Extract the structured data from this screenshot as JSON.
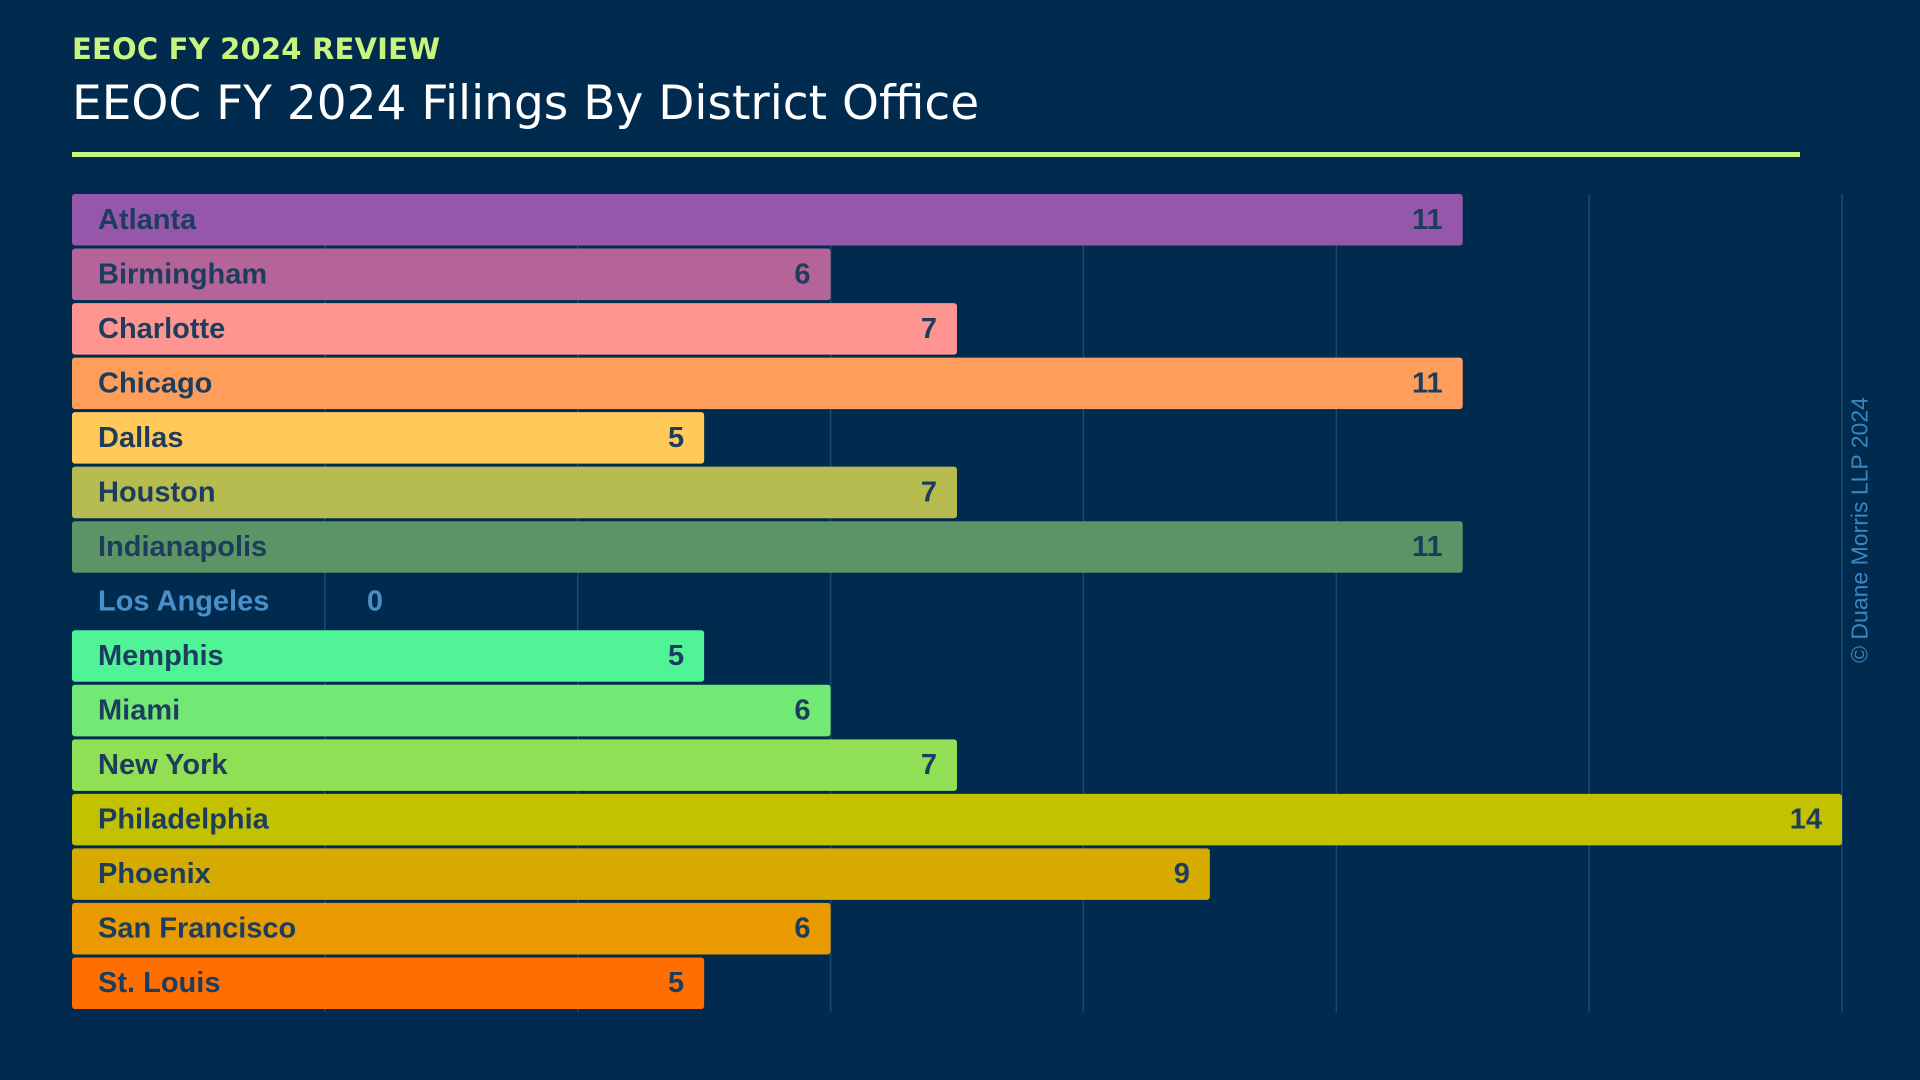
{
  "header": {
    "kicker": "EEOC FY 2024 REVIEW",
    "title": "EEOC FY 2024 Filings By District Office"
  },
  "copyright": "© Duane Morris LLP 2024",
  "colors": {
    "background": "#002a4e",
    "kicker": "#c8f57e",
    "rule": "#c8f57e",
    "gridline": "#1c4a70",
    "label_dark": "#1c3d5e",
    "label_zero": "#4a90c8",
    "copyright": "#3a86c0"
  },
  "chart_data": {
    "type": "bar",
    "orientation": "horizontal",
    "title": "EEOC FY 2024 Filings By District Office",
    "xlim": [
      0,
      14
    ],
    "grid": true,
    "categories": [
      "Atlanta",
      "Birmingham",
      "Charlotte",
      "Chicago",
      "Dallas",
      "Houston",
      "Indianapolis",
      "Los Angeles",
      "Memphis",
      "Miami",
      "New York",
      "Philadelphia",
      "Phoenix",
      "San Francisco",
      "St. Louis"
    ],
    "values": [
      11,
      6,
      7,
      11,
      5,
      7,
      11,
      0,
      5,
      6,
      7,
      14,
      9,
      6,
      5
    ],
    "bar_colors": [
      "#9457a9",
      "#b46498",
      "#ff9590",
      "#ff9d5a",
      "#ffca5a",
      "#b7bc51",
      "#5d9466",
      "#5d9466",
      "#50f395",
      "#73e975",
      "#91df54",
      "#c2c200",
      "#d7aa00",
      "#e99a00",
      "#ff6e00"
    ]
  }
}
